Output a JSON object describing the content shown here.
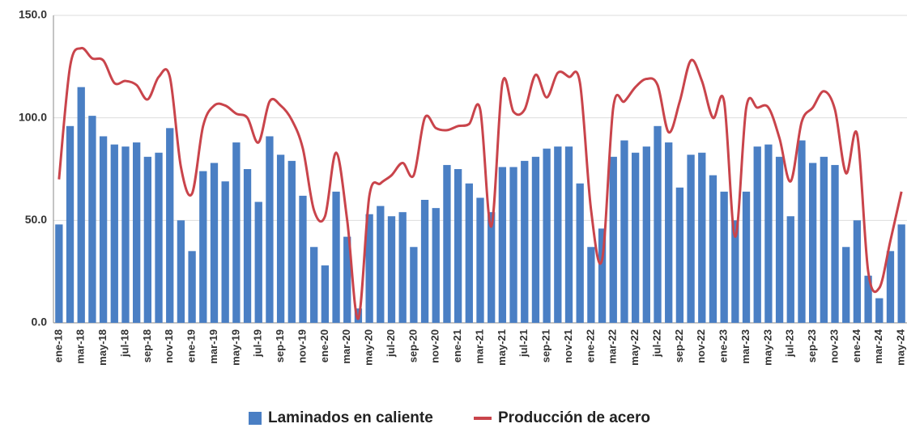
{
  "chart_data": {
    "type": "bar-line",
    "categories": [
      "ene-18",
      null,
      "mar-18",
      null,
      "may-18",
      null,
      "jul-18",
      null,
      "sep-18",
      null,
      "nov-18",
      null,
      "ene-19",
      null,
      "mar-19",
      null,
      "may-19",
      null,
      "jul-19",
      null,
      "sep-19",
      null,
      "nov-19",
      null,
      "ene-20",
      null,
      "mar-20",
      null,
      "may-20",
      null,
      "jul-20",
      null,
      "sep-20",
      null,
      "nov-20",
      null,
      "ene-21",
      null,
      "mar-21",
      null,
      "may-21",
      null,
      "jul-21",
      null,
      "sep-21",
      null,
      "nov-21",
      null,
      "ene-22",
      null,
      "mar-22",
      null,
      "may-22",
      null,
      "jul-22",
      null,
      "sep-22",
      null,
      "nov-22",
      null,
      "ene-23",
      null,
      "mar-23",
      null,
      "may-23",
      null,
      "jul-23",
      null,
      "sep-23",
      null,
      "nov-23",
      null,
      "ene-24",
      null,
      "mar-24",
      null,
      "may-24"
    ],
    "series": [
      {
        "name": "Laminados en caliente",
        "type": "bar",
        "color": "#4a7fc4",
        "values": [
          48,
          96,
          115,
          101,
          91,
          87,
          86,
          88,
          81,
          83,
          95,
          50,
          35,
          74,
          78,
          69,
          88,
          75,
          59,
          91,
          82,
          79,
          62,
          37,
          28,
          64,
          42,
          7,
          53,
          57,
          52,
          54,
          37,
          60,
          56,
          77,
          75,
          68,
          61,
          54,
          76,
          76,
          79,
          81,
          85,
          86,
          86,
          68,
          37,
          46,
          81,
          89,
          83,
          86,
          96,
          88,
          66,
          82,
          83,
          72,
          64,
          50,
          64,
          86,
          87,
          81,
          52,
          89,
          78,
          81,
          77,
          37,
          50,
          23,
          12,
          35,
          48
        ]
      },
      {
        "name": "Producción de acero",
        "type": "line",
        "color": "#c9444b",
        "values": [
          70,
          125,
          134,
          129,
          128,
          117,
          118,
          116,
          109,
          120,
          120,
          76,
          63,
          96,
          106,
          106,
          102,
          100,
          88,
          108,
          106,
          99,
          85,
          55,
          52,
          83,
          50,
          2,
          62,
          68,
          72,
          78,
          72,
          100,
          95,
          94,
          96,
          97,
          104,
          47,
          117,
          103,
          104,
          121,
          110,
          122,
          120,
          117,
          55,
          31,
          105,
          108,
          115,
          119,
          116,
          93,
          108,
          128,
          118,
          100,
          108,
          42,
          105,
          105,
          105,
          90,
          69,
          98,
          105,
          113,
          104,
          73,
          92,
          25,
          17,
          40,
          64
        ]
      }
    ],
    "ylim": [
      0,
      150
    ],
    "yticks": [
      {
        "value": 0,
        "label": "0.0"
      },
      {
        "value": 50,
        "label": "50.0"
      },
      {
        "value": 100,
        "label": "100.0"
      },
      {
        "value": 150,
        "label": "150.0"
      }
    ],
    "grid": true,
    "legend": "bottom"
  }
}
